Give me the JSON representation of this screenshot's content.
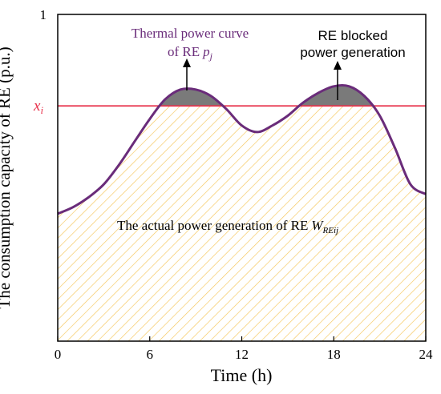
{
  "chart_data": {
    "type": "area",
    "title": "",
    "xlabel": "Time (h)",
    "ylabel": "The consumption capacity of RE (p.u.)",
    "xlim": [
      0,
      24
    ],
    "ylim": [
      0,
      1
    ],
    "x_ticks": [
      "0",
      "6",
      "12",
      "18",
      "24"
    ],
    "y_ticks": [
      "1"
    ],
    "grid": false,
    "series": [
      {
        "x": [
          0,
          1,
          2,
          3,
          4,
          5,
          6,
          7,
          8,
          9,
          10,
          11,
          12,
          13,
          14,
          15,
          16,
          17,
          18,
          19,
          20,
          21,
          22,
          23,
          24
        ],
        "values": [
          0.39,
          0.41,
          0.44,
          0.48,
          0.54,
          0.61,
          0.68,
          0.74,
          0.77,
          0.77,
          0.75,
          0.71,
          0.66,
          0.64,
          0.66,
          0.69,
          0.73,
          0.76,
          0.78,
          0.78,
          0.75,
          0.69,
          0.59,
          0.48,
          0.45
        ]
      }
    ],
    "threshold": {
      "y": 0.72,
      "label": "x",
      "label_sub": "i",
      "color": "#e8304a"
    },
    "colors": {
      "curve": "#6a2c7a",
      "blocked": "#7a7a7a",
      "hatch": "#f5c65a"
    },
    "annotations": {
      "thermal": {
        "line1": "Thermal power curve",
        "line2": "of RE",
        "var": "p",
        "sub": "j"
      },
      "blocked": {
        "line1": "RE blocked",
        "line2": "power generation"
      },
      "actual": {
        "text": "The actual power generation of RE",
        "var": "W",
        "sub": "REij"
      }
    }
  }
}
